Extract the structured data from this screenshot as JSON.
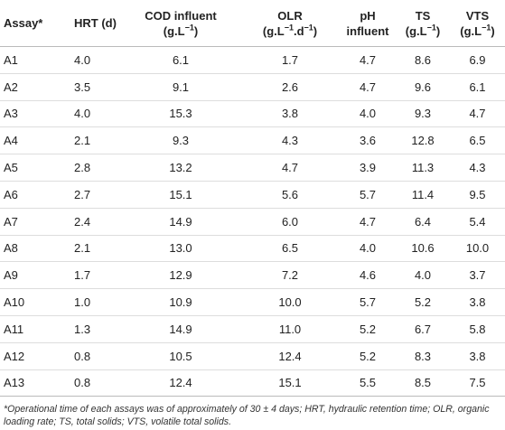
{
  "table": {
    "header": [
      {
        "lines": [
          [
            {
              "text": "Assay*"
            }
          ]
        ]
      },
      {
        "lines": [
          [
            {
              "text": "HRT (d)"
            }
          ]
        ]
      },
      {
        "lines": [
          [
            {
              "text": "COD influent"
            }
          ],
          [
            {
              "text": "(g.L"
            },
            {
              "text": "−1",
              "sup": true
            },
            {
              "text": ")"
            }
          ]
        ]
      },
      {
        "lines": [
          [
            {
              "text": "OLR"
            }
          ],
          [
            {
              "text": "(g.L"
            },
            {
              "text": "−1",
              "sup": true
            },
            {
              "text": ".d"
            },
            {
              "text": "−1",
              "sup": true
            },
            {
              "text": ")"
            }
          ]
        ]
      },
      {
        "lines": [
          [
            {
              "text": "pH"
            }
          ],
          [
            {
              "text": "influent"
            }
          ]
        ]
      },
      {
        "lines": [
          [
            {
              "text": "TS"
            }
          ],
          [
            {
              "text": "(g.L"
            },
            {
              "text": "−1",
              "sup": true
            },
            {
              "text": ")"
            }
          ]
        ]
      },
      {
        "lines": [
          [
            {
              "text": "VTS"
            }
          ],
          [
            {
              "text": "(g.L"
            },
            {
              "text": "−1",
              "sup": true
            },
            {
              "text": ")"
            }
          ]
        ]
      }
    ],
    "rows": [
      [
        "A1",
        "4.0",
        "6.1",
        "1.7",
        "4.7",
        "8.6",
        "6.9"
      ],
      [
        "A2",
        "3.5",
        "9.1",
        "2.6",
        "4.7",
        "9.6",
        "6.1"
      ],
      [
        "A3",
        "4.0",
        "15.3",
        "3.8",
        "4.0",
        "9.3",
        "4.7"
      ],
      [
        "A4",
        "2.1",
        "9.3",
        "4.3",
        "3.6",
        "12.8",
        "6.5"
      ],
      [
        "A5",
        "2.8",
        "13.2",
        "4.7",
        "3.9",
        "11.3",
        "4.3"
      ],
      [
        "A6",
        "2.7",
        "15.1",
        "5.6",
        "5.7",
        "11.4",
        "9.5"
      ],
      [
        "A7",
        "2.4",
        "14.9",
        "6.0",
        "4.7",
        "6.4",
        "5.4"
      ],
      [
        "A8",
        "2.1",
        "13.0",
        "6.5",
        "4.0",
        "10.6",
        "10.0"
      ],
      [
        "A9",
        "1.7",
        "12.9",
        "7.2",
        "4.6",
        "4.0",
        "3.7"
      ],
      [
        "A10",
        "1.0",
        "10.9",
        "10.0",
        "5.7",
        "5.2",
        "3.8"
      ],
      [
        "A11",
        "1.3",
        "14.9",
        "11.0",
        "5.2",
        "6.7",
        "5.8"
      ],
      [
        "A12",
        "0.8",
        "10.5",
        "12.4",
        "5.2",
        "8.3",
        "3.8"
      ],
      [
        "A13",
        "0.8",
        "12.4",
        "15.1",
        "5.5",
        "8.5",
        "7.5"
      ]
    ],
    "footnote": "*Operational time of each assays was of approximately of 30 ± 4 days; HRT, hydraulic retention time; OLR, organic loading rate; TS, total solids; VTS, volatile total solids."
  }
}
